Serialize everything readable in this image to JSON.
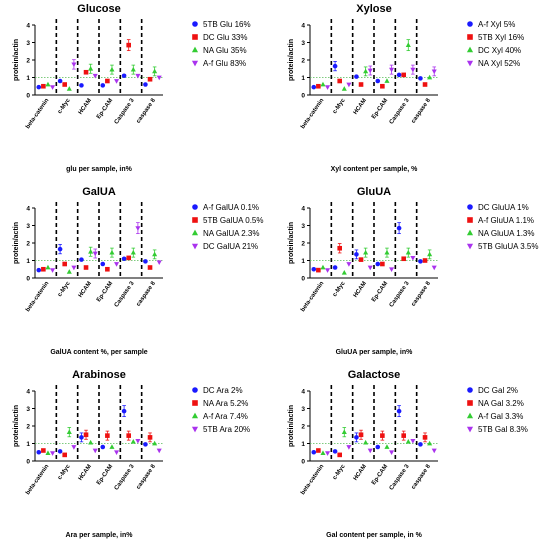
{
  "colors": {
    "blue": "#1a1aff",
    "red": "#ee1111",
    "green": "#33cc33",
    "purple": "#aa33ee",
    "ref": "#55bb55"
  },
  "chart_data": [
    {
      "type": "scatter",
      "title": "Glucose",
      "xlabel": "glu per sample, in%",
      "ylabel": "protein/actin",
      "categories": [
        "beta-catenin",
        "c-Myc",
        "HCAM",
        "Ep-CAM",
        "Caspase 3",
        "caspase 8"
      ],
      "ylim": [
        0,
        4
      ],
      "yticks": [
        0,
        1,
        2,
        3,
        4
      ],
      "reference_line": 1,
      "series": [
        {
          "name": "5TB Glu 16%",
          "color": "blue",
          "marker": "circle",
          "values": [
            0.45,
            0.8,
            0.55,
            0.55,
            1.1,
            0.6
          ]
        },
        {
          "name": "DC Glu 33%",
          "color": "red",
          "marker": "square",
          "values": [
            0.5,
            0.6,
            1.3,
            0.8,
            2.85,
            0.9
          ]
        },
        {
          "name": "NA Glu 35%",
          "color": "green",
          "marker": "triangle-up",
          "values": [
            0.6,
            0.35,
            1.5,
            1.45,
            1.45,
            1.35
          ]
        },
        {
          "name": "A-f Glu 83%",
          "color": "purple",
          "marker": "triangle-down",
          "values": [
            0.45,
            1.75,
            1.1,
            0.8,
            1.1,
            1.0
          ]
        }
      ]
    },
    {
      "type": "scatter",
      "title": "Xylose",
      "xlabel": "Xyl content per sample, %",
      "ylabel": "protein/actin",
      "categories": [
        "beta-catenin",
        "c-Myc",
        "HCAM",
        "Ep-CAM",
        "Caspase 3",
        "caspase 8"
      ],
      "ylim": [
        0,
        4
      ],
      "yticks": [
        0,
        1,
        2,
        3,
        4
      ],
      "reference_line": 1,
      "series": [
        {
          "name": "A-f Xyl 5%",
          "color": "blue",
          "marker": "circle",
          "values": [
            0.45,
            1.65,
            1.05,
            0.8,
            1.15,
            0.95
          ]
        },
        {
          "name": "5TB Xyl 16%",
          "color": "red",
          "marker": "square",
          "values": [
            0.5,
            0.8,
            0.6,
            0.5,
            1.15,
            0.6
          ]
        },
        {
          "name": "DC Xyl 40%",
          "color": "green",
          "marker": "triangle-up",
          "values": [
            0.6,
            0.35,
            1.35,
            0.8,
            2.85,
            1.0
          ]
        },
        {
          "name": "NA Xyl 52%",
          "color": "purple",
          "marker": "triangle-down",
          "values": [
            0.45,
            0.6,
            1.4,
            1.45,
            1.45,
            1.35
          ]
        }
      ]
    },
    {
      "type": "scatter",
      "title": "GalUA",
      "xlabel": "GalUA content %, per sample",
      "ylabel": "protein/actin",
      "categories": [
        "beta-catenin",
        "c-Myc",
        "HCAM",
        "Ep-CAM",
        "Caspase 3",
        "caspase 8"
      ],
      "ylim": [
        0,
        4
      ],
      "yticks": [
        0,
        1,
        2,
        3,
        4
      ],
      "reference_line": 1,
      "series": [
        {
          "name": "A-f GalUA 0.1%",
          "color": "blue",
          "marker": "circle",
          "values": [
            0.45,
            1.65,
            1.05,
            0.8,
            1.1,
            0.95
          ]
        },
        {
          "name": "5TB GalUA 0.5%",
          "color": "red",
          "marker": "square",
          "values": [
            0.5,
            0.8,
            0.6,
            0.5,
            1.15,
            0.6
          ]
        },
        {
          "name": "NA GalUA 2.3%",
          "color": "green",
          "marker": "triangle-up",
          "values": [
            0.6,
            0.35,
            1.5,
            1.45,
            1.45,
            1.35
          ]
        },
        {
          "name": "DC GalUA 21%",
          "color": "purple",
          "marker": "triangle-down",
          "values": [
            0.45,
            0.6,
            1.4,
            0.8,
            2.85,
            0.9
          ]
        }
      ]
    },
    {
      "type": "scatter",
      "title": "GluUA",
      "xlabel": "GluUA per sample, in%",
      "ylabel": "protein/actin",
      "categories": [
        "beta-catenin",
        "c-Myc",
        "HCAM",
        "Ep-CAM",
        "Caspase 3",
        "caspase 8"
      ],
      "ylim": [
        0,
        4
      ],
      "yticks": [
        0,
        1,
        2,
        3,
        4
      ],
      "reference_line": 1,
      "series": [
        {
          "name": "DC GluUA 1%",
          "color": "blue",
          "marker": "circle",
          "values": [
            0.5,
            0.6,
            1.35,
            0.8,
            2.85,
            0.95
          ]
        },
        {
          "name": "A-f GluUA 1.1%",
          "color": "red",
          "marker": "square",
          "values": [
            0.45,
            1.7,
            1.05,
            0.8,
            1.1,
            1.0
          ]
        },
        {
          "name": "NA GluUA 1.3%",
          "color": "green",
          "marker": "triangle-up",
          "values": [
            0.6,
            0.3,
            1.45,
            1.45,
            1.45,
            1.35
          ]
        },
        {
          "name": "5TB GluUA 3.5%",
          "color": "purple",
          "marker": "triangle-down",
          "values": [
            0.45,
            0.8,
            0.6,
            0.5,
            1.15,
            0.6
          ]
        }
      ]
    },
    {
      "type": "scatter",
      "title": "Arabinose",
      "xlabel": "Ara per sample, in%",
      "ylabel": "protein/actin",
      "categories": [
        "beta-catenin",
        "c-Myc",
        "HCAM",
        "Ep-CAM",
        "Caspase 3",
        "caspase 8"
      ],
      "ylim": [
        0,
        4
      ],
      "yticks": [
        0,
        1,
        2,
        3,
        4
      ],
      "reference_line": 1,
      "series": [
        {
          "name": "DC Ara 2%",
          "color": "blue",
          "marker": "circle",
          "values": [
            0.5,
            0.55,
            1.35,
            0.8,
            2.85,
            0.95
          ]
        },
        {
          "name": "NA Ara 5.2%",
          "color": "red",
          "marker": "square",
          "values": [
            0.6,
            0.35,
            1.5,
            1.45,
            1.45,
            1.35
          ]
        },
        {
          "name": "A-f Ara 7.4%",
          "color": "green",
          "marker": "triangle-up",
          "values": [
            0.45,
            1.65,
            1.05,
            0.8,
            1.1,
            1.0
          ]
        },
        {
          "name": "5TB Ara 20%",
          "color": "purple",
          "marker": "triangle-down",
          "values": [
            0.45,
            0.8,
            0.6,
            0.5,
            1.15,
            0.6
          ]
        }
      ]
    },
    {
      "type": "scatter",
      "title": "Galactose",
      "xlabel": "Gal content per sample, in %",
      "ylabel": "protein/actin",
      "categories": [
        "beta-catenin",
        "c-Myc",
        "HCAM",
        "Ep-CAM",
        "Caspase 3",
        "caspase 8"
      ],
      "ylim": [
        0,
        4
      ],
      "yticks": [
        0,
        1,
        2,
        3,
        4
      ],
      "reference_line": 1,
      "series": [
        {
          "name": "DC Gal 2%",
          "color": "blue",
          "marker": "circle",
          "values": [
            0.5,
            0.55,
            1.35,
            0.8,
            2.85,
            0.95
          ]
        },
        {
          "name": "NA Gal 3.2%",
          "color": "red",
          "marker": "square",
          "values": [
            0.6,
            0.35,
            1.5,
            1.45,
            1.45,
            1.35
          ]
        },
        {
          "name": "A-f Gal 3.3%",
          "color": "green",
          "marker": "triangle-up",
          "values": [
            0.45,
            1.65,
            1.05,
            0.8,
            1.1,
            1.0
          ]
        },
        {
          "name": "5TB Gal 8.3%",
          "color": "purple",
          "marker": "triangle-down",
          "values": [
            0.45,
            0.8,
            0.6,
            0.5,
            1.15,
            0.6
          ]
        }
      ]
    }
  ]
}
